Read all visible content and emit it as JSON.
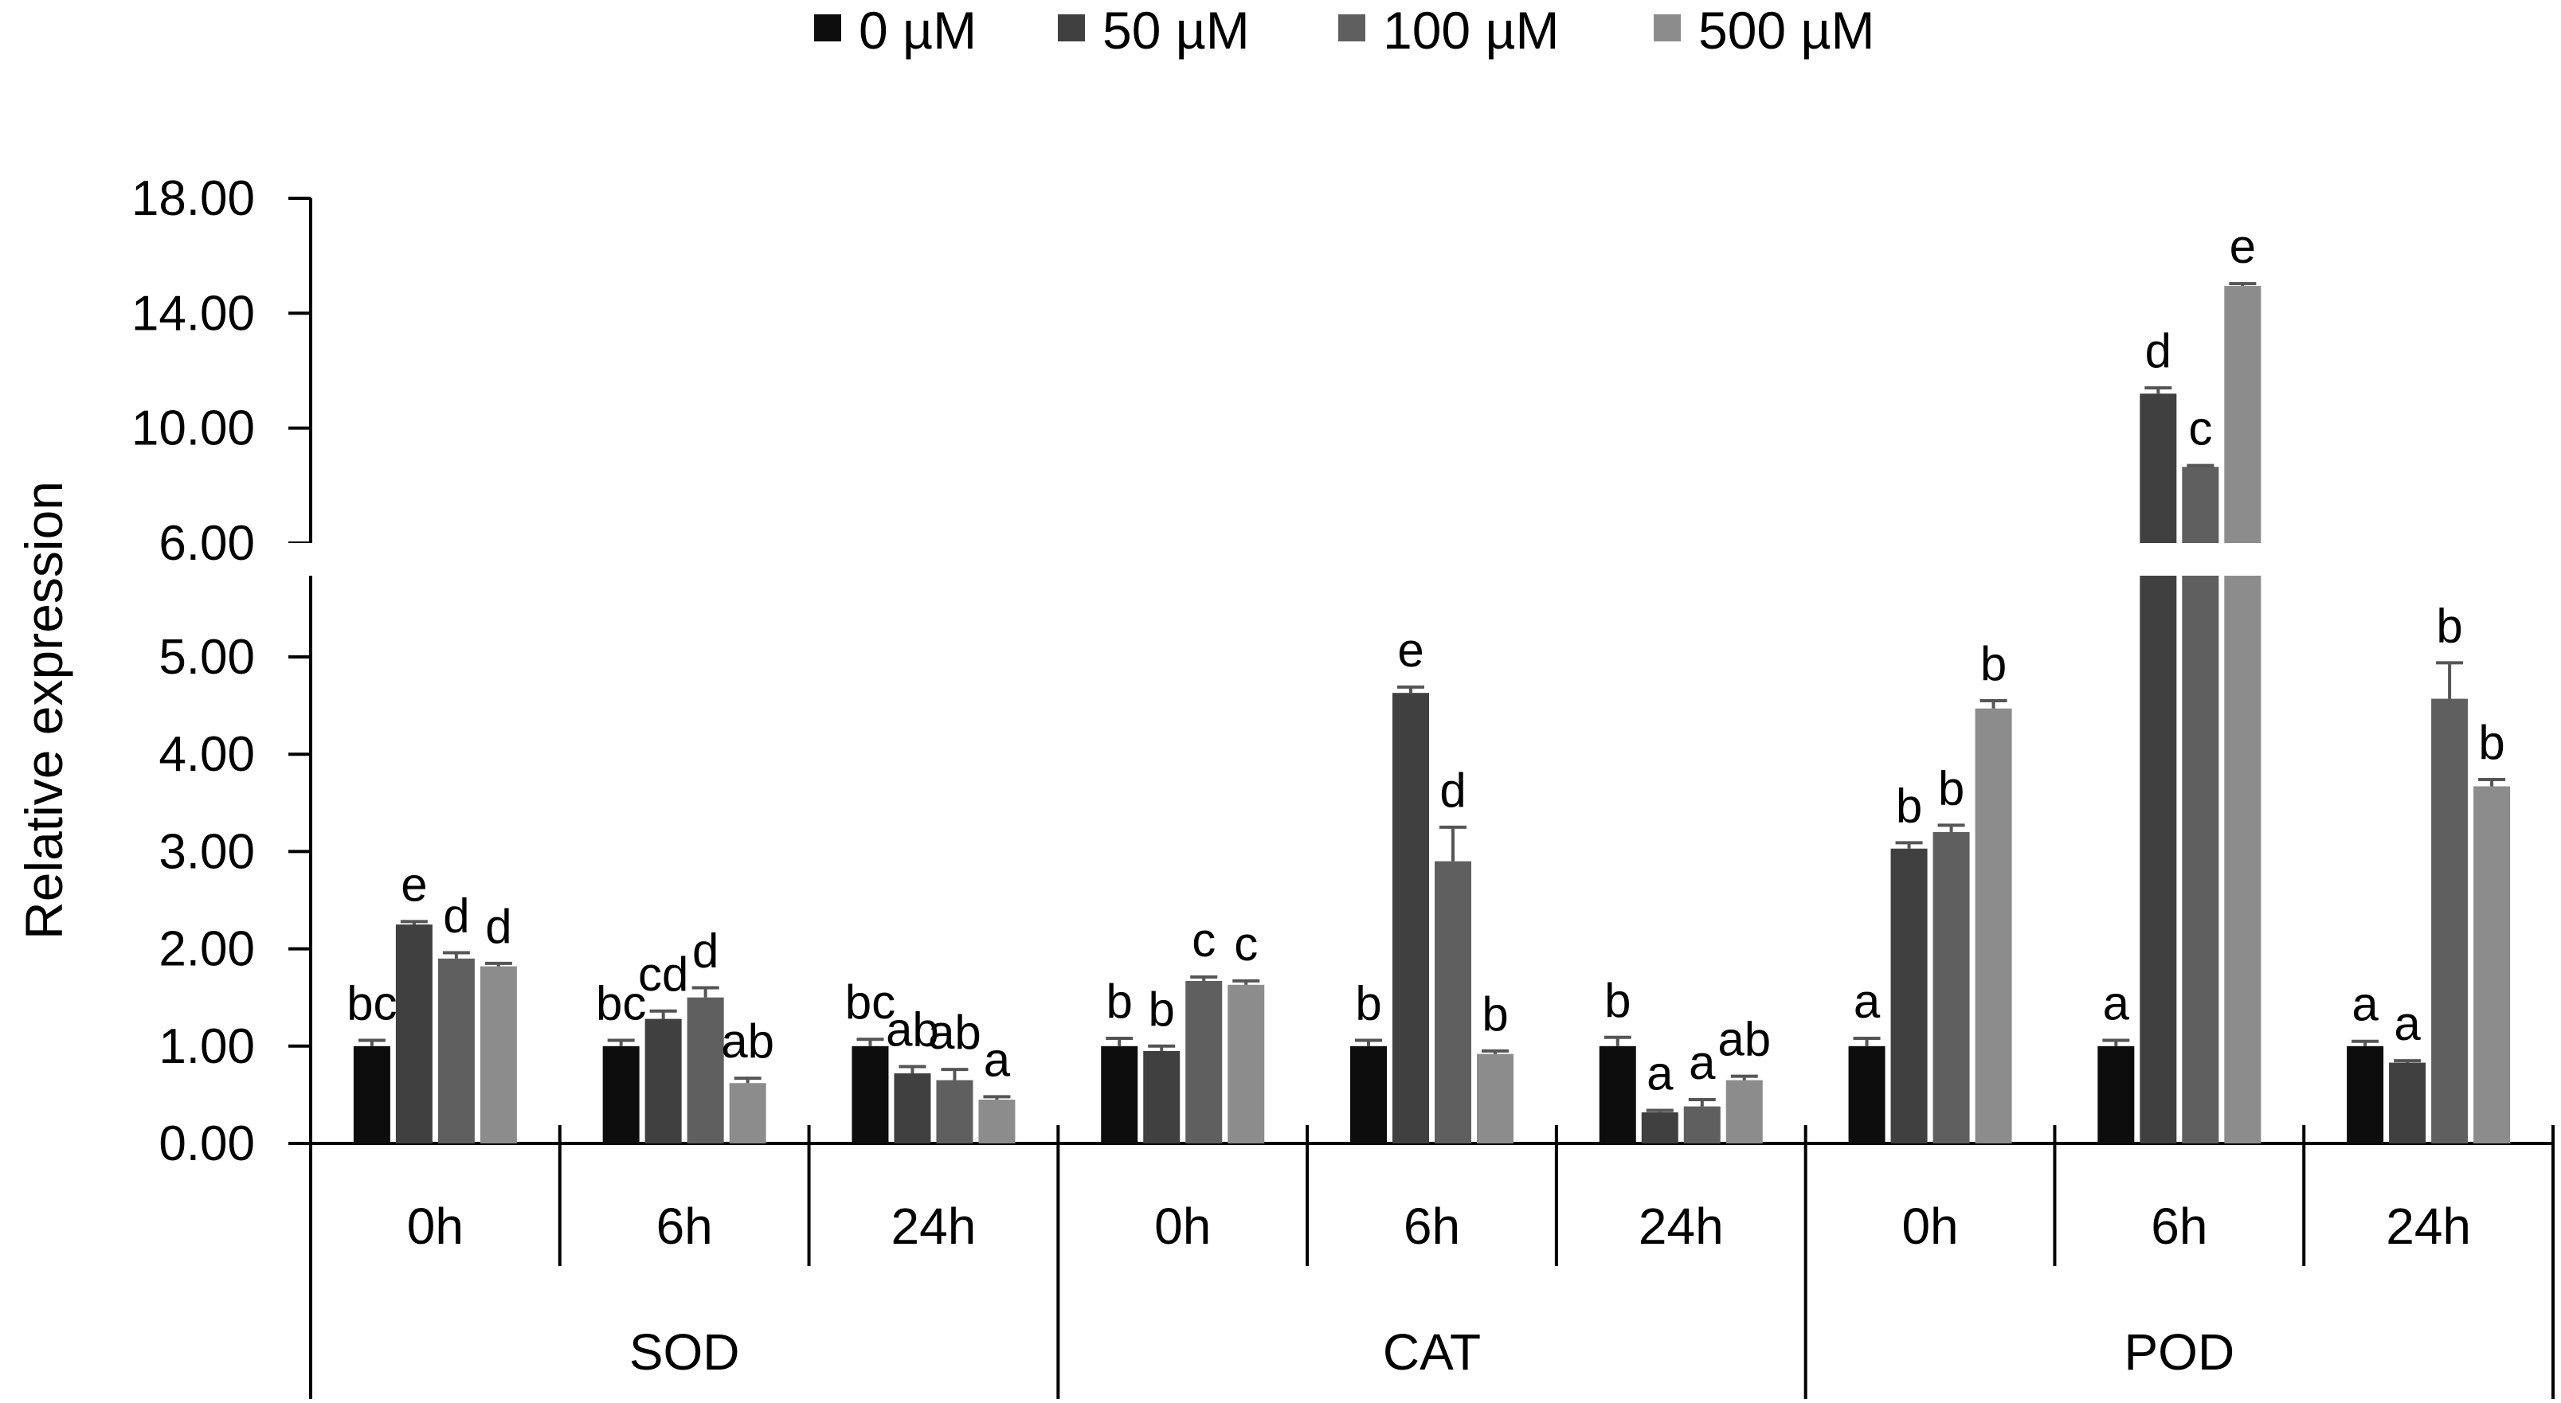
{
  "chart_data": {
    "type": "bar",
    "ylabel": "Relative expression",
    "xlabel": "",
    "y_axis": {
      "broken": true,
      "lower_range": [
        0,
        6
      ],
      "upper_range": [
        6,
        18
      ],
      "lower_ticks": [
        "0.00",
        "1.00",
        "2.00",
        "3.00",
        "4.00",
        "5.00",
        "6.00"
      ],
      "upper_ticks": [
        "10.00",
        "14.00",
        "18.00"
      ]
    },
    "legend": {
      "position": "top-center",
      "entries": [
        {
          "name": "0 µM",
          "color": "#0d0d0d"
        },
        {
          "name": "50 µM",
          "color": "#404040"
        },
        {
          "name": "100 µM",
          "color": "#5f5f5f"
        },
        {
          "name": "500 µM",
          "color": "#8c8c8c"
        }
      ]
    },
    "groups": [
      {
        "name": "SOD",
        "times": [
          "0h",
          "6h",
          "24h"
        ]
      },
      {
        "name": "CAT",
        "times": [
          "0h",
          "6h",
          "24h"
        ]
      },
      {
        "name": "POD",
        "times": [
          "0h",
          "6h",
          "24h"
        ]
      }
    ],
    "series": [
      {
        "name": "0 µM",
        "values": [
          1.0,
          1.0,
          1.0,
          1.0,
          1.0,
          1.0,
          1.0,
          1.0,
          1.0
        ],
        "errors": [
          0.06,
          0.06,
          0.07,
          0.08,
          0.06,
          0.09,
          0.08,
          0.06,
          0.05
        ],
        "letters": [
          "bc",
          "bc",
          "bc",
          "b",
          "b",
          "b",
          "a",
          "a",
          "a"
        ]
      },
      {
        "name": "50 µM",
        "values": [
          2.25,
          1.28,
          0.72,
          0.95,
          4.63,
          0.32,
          3.03,
          11.2,
          0.83
        ],
        "errors": [
          0.03,
          0.08,
          0.07,
          0.05,
          0.06,
          0.02,
          0.06,
          0.2,
          0.02
        ],
        "letters": [
          "e",
          "cd",
          "ab",
          "b",
          "e",
          "a",
          "b",
          "d",
          "a"
        ]
      },
      {
        "name": "100 µM",
        "values": [
          1.9,
          1.5,
          0.65,
          1.67,
          2.9,
          0.38,
          3.2,
          8.65,
          4.57
        ],
        "errors": [
          0.06,
          0.1,
          0.11,
          0.04,
          0.35,
          0.07,
          0.07,
          0.05,
          0.37
        ],
        "letters": [
          "d",
          "d",
          "ab",
          "c",
          "d",
          "a",
          "b",
          "c",
          "b"
        ]
      },
      {
        "name": "500 µM",
        "values": [
          1.82,
          0.62,
          0.45,
          1.63,
          0.92,
          0.65,
          4.47,
          14.95,
          3.67
        ],
        "errors": [
          0.03,
          0.05,
          0.03,
          0.04,
          0.03,
          0.04,
          0.08,
          0.08,
          0.07
        ],
        "letters": [
          "d",
          "ab",
          "a",
          "c",
          "b",
          "ab",
          "b",
          "e",
          "b"
        ]
      }
    ]
  }
}
